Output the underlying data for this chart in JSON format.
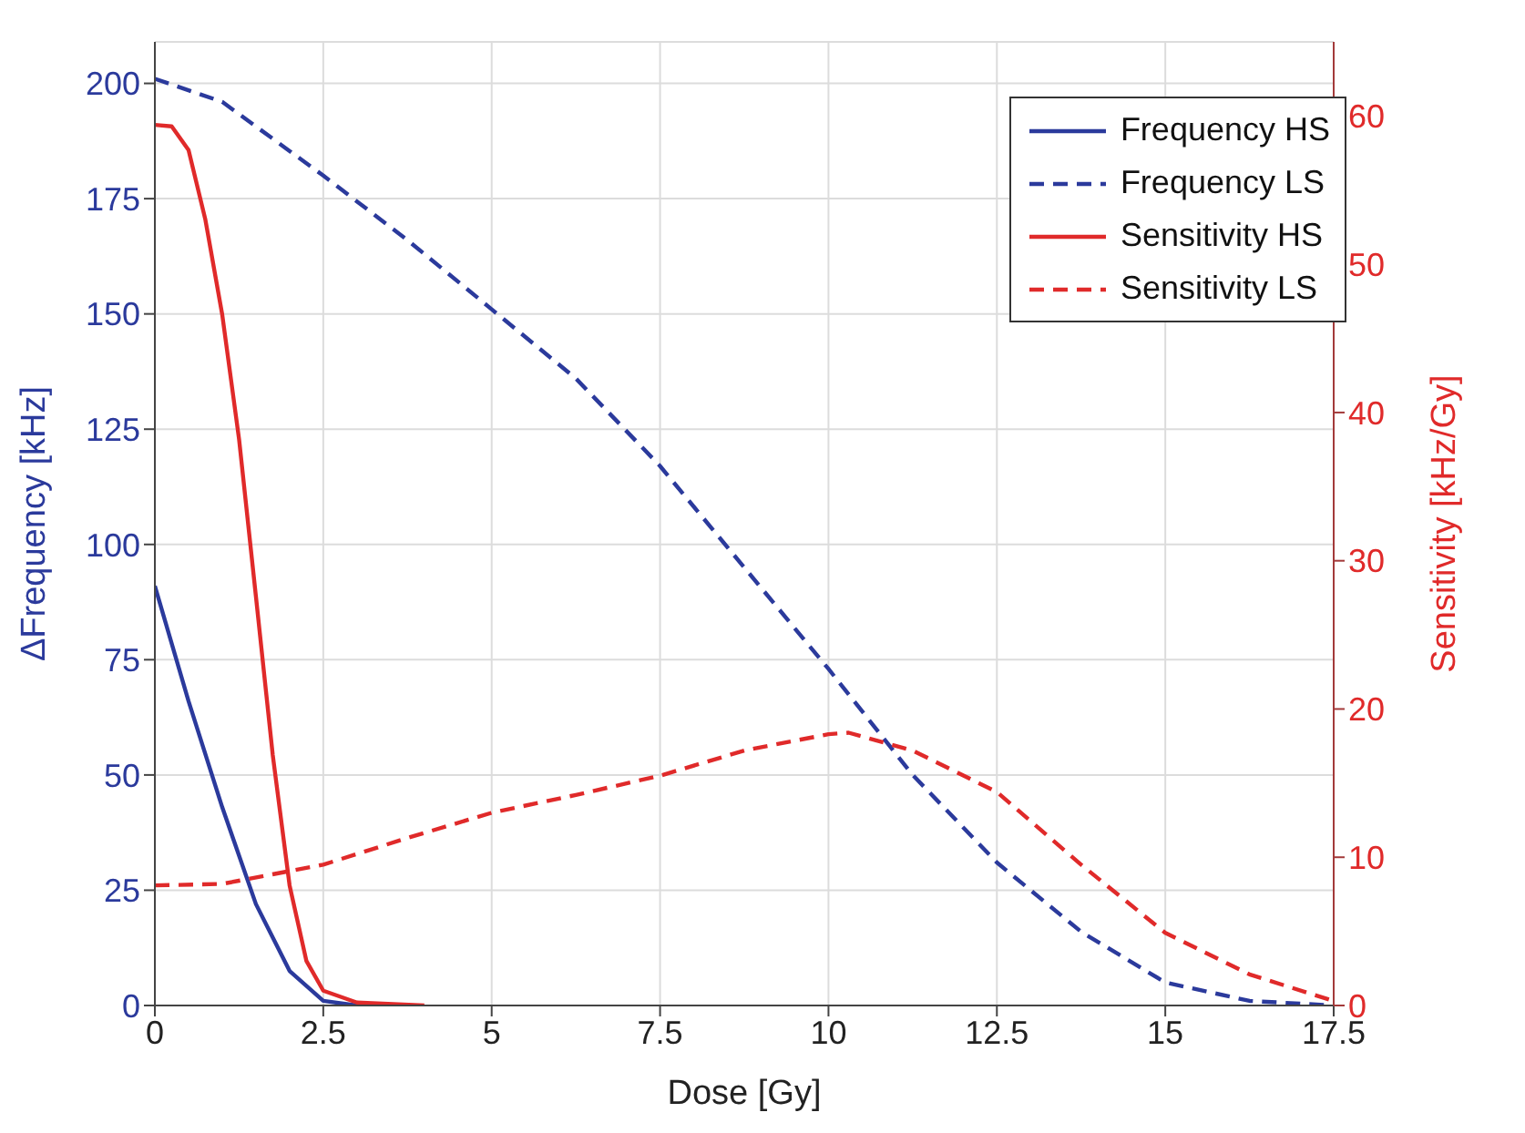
{
  "chart_data": {
    "type": "line",
    "xlabel": "Dose [Gy]",
    "ylabel": "ΔFrequency [kHz]",
    "y2label": "Sensitivity [kHz/Gy]",
    "xlim": [
      0,
      17.5
    ],
    "xticks": [
      0,
      2.5,
      5,
      7.5,
      10,
      12.5,
      15,
      17.5
    ],
    "ylim": [
      0,
      209
    ],
    "yticks": [
      0,
      25,
      50,
      75,
      100,
      125,
      150,
      175,
      200
    ],
    "y2lim": [
      0,
      65
    ],
    "y2ticks": [
      0,
      10,
      20,
      30,
      40,
      50,
      60
    ],
    "grid": true,
    "legend": "top right",
    "marker": "none",
    "series": [
      {
        "name": "Frequency HS",
        "color": "#2b3a9c",
        "line_style": "solid",
        "x": [
          0,
          0.5,
          1,
          1.5,
          2,
          2.5,
          3
        ],
        "values": [
          91,
          66,
          43,
          22,
          7.5,
          1,
          0
        ]
      },
      {
        "name": "Frequency LS",
        "color": "#2b3a9c",
        "line_style": "dashed",
        "x": [
          0,
          1,
          2.5,
          3.75,
          5,
          6.25,
          7.5,
          8.75,
          10,
          11.25,
          12.5,
          13.75,
          15,
          16.25,
          17.5
        ],
        "values": [
          201,
          196,
          180,
          166,
          151,
          136,
          117,
          95,
          73,
          50,
          31,
          16,
          5,
          1,
          0
        ]
      },
      {
        "name": "Sensitivity HS",
        "color": "#e02a2a",
        "line_style": "solid",
        "axis": "y2",
        "x": [
          0,
          0.25,
          0.5,
          0.75,
          1,
          1.25,
          1.5,
          1.75,
          2,
          2.25,
          2.5,
          3,
          4
        ],
        "values": [
          59.4,
          59.3,
          57.7,
          53,
          46.6,
          38.2,
          27.6,
          16.9,
          8.1,
          3,
          1,
          0.2,
          0
        ]
      },
      {
        "name": "Sensitivity LS",
        "color": "#e02a2a",
        "line_style": "dashed",
        "axis": "y2",
        "x": [
          0,
          1,
          2.5,
          3.75,
          5,
          6.25,
          7.5,
          8.75,
          10,
          10.3,
          11.25,
          12.5,
          13.75,
          15,
          16.25,
          17.5
        ],
        "values": [
          8.1,
          8.2,
          9.5,
          11.3,
          13,
          14.2,
          15.5,
          17.2,
          18.3,
          18.4,
          17.2,
          14.4,
          9.5,
          4.9,
          2.1,
          0.3
        ]
      }
    ]
  }
}
